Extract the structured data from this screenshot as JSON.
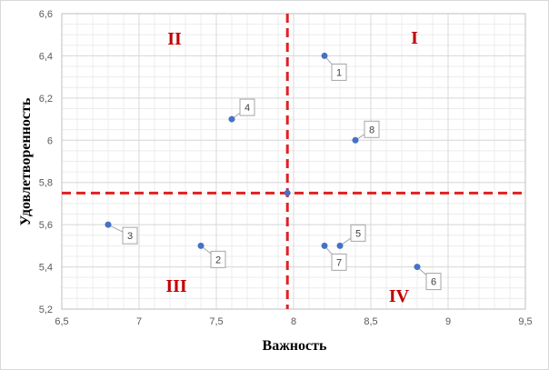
{
  "chart_data": {
    "type": "scatter",
    "title": "",
    "xlabel": "Важность",
    "ylabel": "Удовлетворенность",
    "xlim": [
      6.5,
      9.5
    ],
    "ylim": [
      5.2,
      6.6
    ],
    "grid": true,
    "x_ticks": [
      "6,5",
      "7",
      "7,5",
      "8",
      "8,5",
      "9",
      "9,5"
    ],
    "y_ticks": [
      "5,2",
      "5,4",
      "5,6",
      "5,8",
      "6",
      "6,2",
      "6,4",
      "6,6"
    ],
    "points": [
      {
        "label": "1",
        "x": 8.2,
        "y": 6.4
      },
      {
        "label": "2",
        "x": 7.4,
        "y": 5.5
      },
      {
        "label": "3",
        "x": 6.8,
        "y": 5.6
      },
      {
        "label": "4",
        "x": 7.6,
        "y": 6.1
      },
      {
        "label": "5",
        "x": 8.3,
        "y": 5.5
      },
      {
        "label": "6",
        "x": 8.8,
        "y": 5.4
      },
      {
        "label": "7",
        "x": 8.2,
        "y": 5.5
      },
      {
        "label": "8",
        "x": 8.4,
        "y": 6.0
      }
    ],
    "center_point": {
      "x": 7.96,
      "y": 5.75
    },
    "divider_x": 7.96,
    "divider_y": 5.75,
    "quadrants": [
      "I",
      "II",
      "III",
      "IV"
    ],
    "colors": {
      "point": "#4472c4",
      "divider": "#e02020",
      "quadrant_label": "#c00000",
      "grid": "#d9d9d9"
    }
  }
}
